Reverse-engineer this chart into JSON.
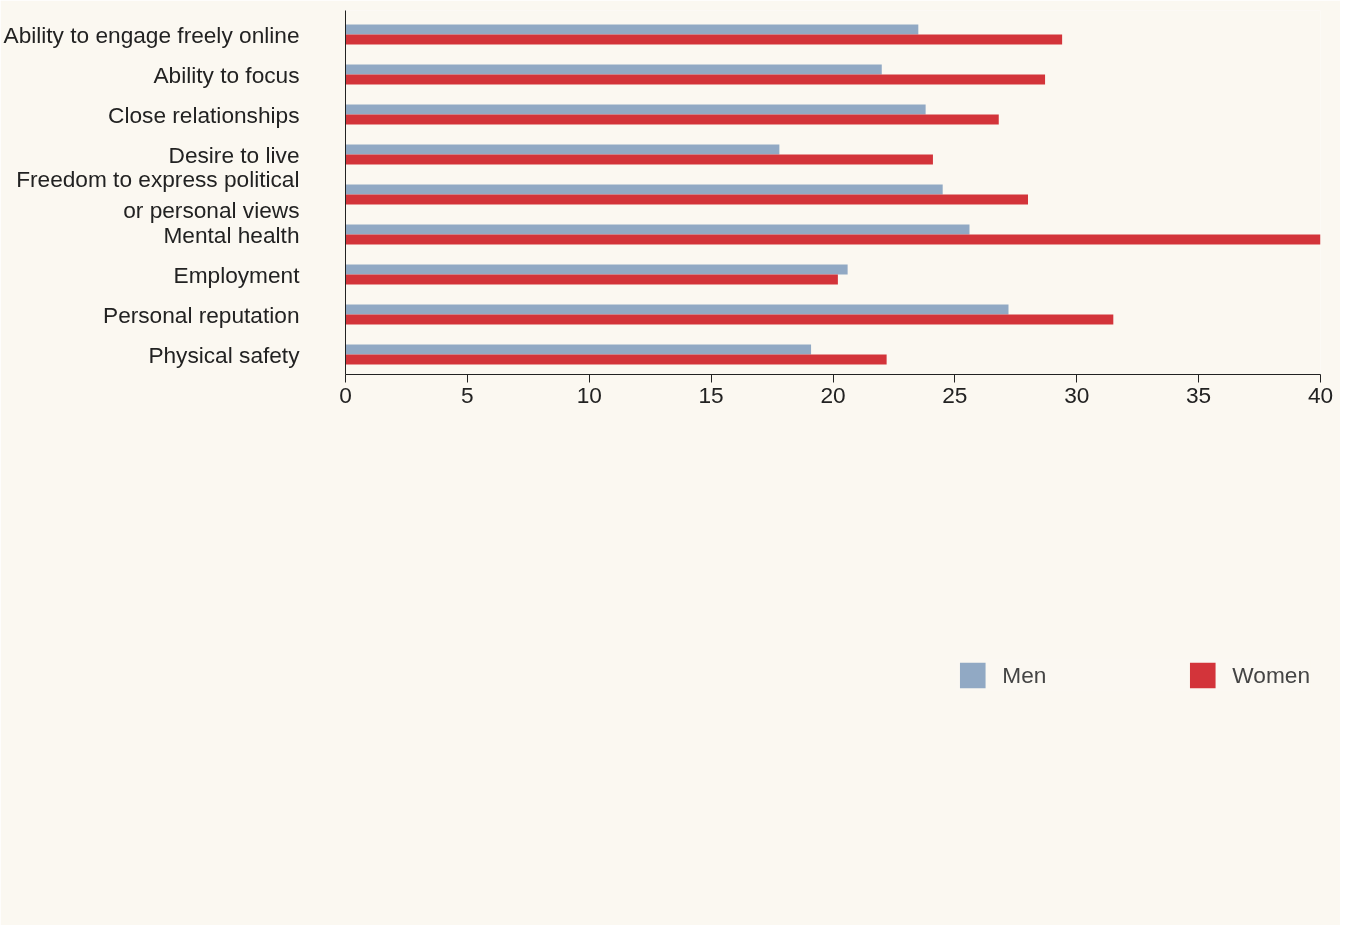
{
  "chart_data": {
    "type": "bar",
    "orientation": "horizontal",
    "categories": [
      "Ability to engage freely online",
      "Ability to focus",
      "Close relationships",
      "Desire to live",
      "Freedom to express political\nor personal views",
      "Mental health",
      "Employment",
      "Personal reputation",
      "Physical safety"
    ],
    "series": [
      {
        "name": "Men",
        "color": "#91a9c4",
        "values": [
          23.5,
          22.0,
          23.8,
          17.8,
          24.5,
          25.6,
          20.6,
          27.2,
          19.1
        ]
      },
      {
        "name": "Women",
        "color": "#d3343a",
        "values": [
          29.4,
          28.7,
          26.8,
          24.1,
          28.0,
          40.0,
          20.2,
          31.5,
          22.2
        ]
      }
    ],
    "xlim": [
      0,
      40
    ],
    "xticks": [
      0,
      5,
      10,
      15,
      20,
      25,
      30,
      35,
      40
    ],
    "grid": false,
    "legend": "bottom"
  }
}
